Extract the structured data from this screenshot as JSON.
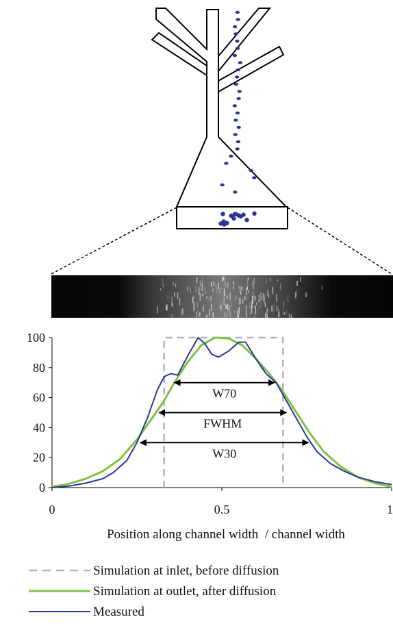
{
  "colors": {
    "inlet": "#b3b3b3",
    "outlet": "#7dc242",
    "measured": "#2a3593",
    "droplet": "#2a3593",
    "arrow": "#000000",
    "outline": "#000000"
  },
  "chart_data": {
    "type": "line",
    "xlabel": "Position along channel width  / channel width",
    "ylabel": "",
    "xlim": [
      0,
      1
    ],
    "ylim": [
      0,
      100
    ],
    "x_ticks": [
      {
        "value": 0,
        "label": "0"
      },
      {
        "value": 0.5,
        "label": "0.5"
      },
      {
        "value": 1,
        "label": "1"
      }
    ],
    "y_ticks": [
      {
        "value": 0,
        "label": "0"
      },
      {
        "value": 20,
        "label": "20"
      },
      {
        "value": 40,
        "label": "40"
      },
      {
        "value": 60,
        "label": "60"
      },
      {
        "value": 80,
        "label": "80"
      },
      {
        "value": 100,
        "label": "100"
      }
    ],
    "grid": false,
    "legend_position": "bottom",
    "series": [
      {
        "name": "Simulation at inlet, before diffusion",
        "color": "#b3b3b3",
        "dash": true,
        "width": 2.5,
        "points": [
          [
            0.33,
            0
          ],
          [
            0.33,
            100
          ],
          [
            0.68,
            100
          ],
          [
            0.68,
            0
          ]
        ]
      },
      {
        "name": "Simulation at outlet, after diffusion",
        "color": "#7dc242",
        "dash": false,
        "width": 3,
        "points": [
          [
            0,
            0.5
          ],
          [
            0.05,
            2.5
          ],
          [
            0.1,
            6
          ],
          [
            0.15,
            11
          ],
          [
            0.2,
            19
          ],
          [
            0.25,
            32
          ],
          [
            0.3,
            48
          ],
          [
            0.33,
            58
          ],
          [
            0.36,
            70
          ],
          [
            0.4,
            84
          ],
          [
            0.44,
            95
          ],
          [
            0.48,
            100
          ],
          [
            0.52,
            99.5
          ],
          [
            0.56,
            95
          ],
          [
            0.6,
            86
          ],
          [
            0.64,
            76
          ],
          [
            0.68,
            64
          ],
          [
            0.72,
            50
          ],
          [
            0.76,
            36
          ],
          [
            0.8,
            24
          ],
          [
            0.85,
            14
          ],
          [
            0.9,
            7
          ],
          [
            0.95,
            3
          ],
          [
            1,
            0.5
          ]
        ]
      },
      {
        "name": "Measured",
        "color": "#2a3593",
        "dash": false,
        "width": 2,
        "points": [
          [
            0,
            0
          ],
          [
            0.05,
            1
          ],
          [
            0.1,
            3
          ],
          [
            0.15,
            6
          ],
          [
            0.18,
            10
          ],
          [
            0.22,
            18
          ],
          [
            0.25,
            30
          ],
          [
            0.28,
            46
          ],
          [
            0.31,
            65
          ],
          [
            0.33,
            74
          ],
          [
            0.35,
            76
          ],
          [
            0.37,
            75
          ],
          [
            0.4,
            88
          ],
          [
            0.43,
            100
          ],
          [
            0.45,
            96
          ],
          [
            0.47,
            89
          ],
          [
            0.49,
            87
          ],
          [
            0.52,
            91
          ],
          [
            0.55,
            97
          ],
          [
            0.57,
            97
          ],
          [
            0.6,
            86
          ],
          [
            0.63,
            76
          ],
          [
            0.66,
            70
          ],
          [
            0.69,
            58
          ],
          [
            0.72,
            46
          ],
          [
            0.75,
            34
          ],
          [
            0.78,
            24
          ],
          [
            0.82,
            16
          ],
          [
            0.86,
            11
          ],
          [
            0.9,
            7
          ],
          [
            0.95,
            4
          ],
          [
            1,
            2
          ]
        ]
      }
    ],
    "annotations": [
      {
        "label": "W70",
        "y": 70,
        "x_from": 0.36,
        "x_to": 0.655
      },
      {
        "label": "FWHM",
        "y": 50,
        "x_from": 0.315,
        "x_to": 0.69
      },
      {
        "label": "W30",
        "y": 30,
        "x_from": 0.26,
        "x_to": 0.755
      }
    ]
  }
}
